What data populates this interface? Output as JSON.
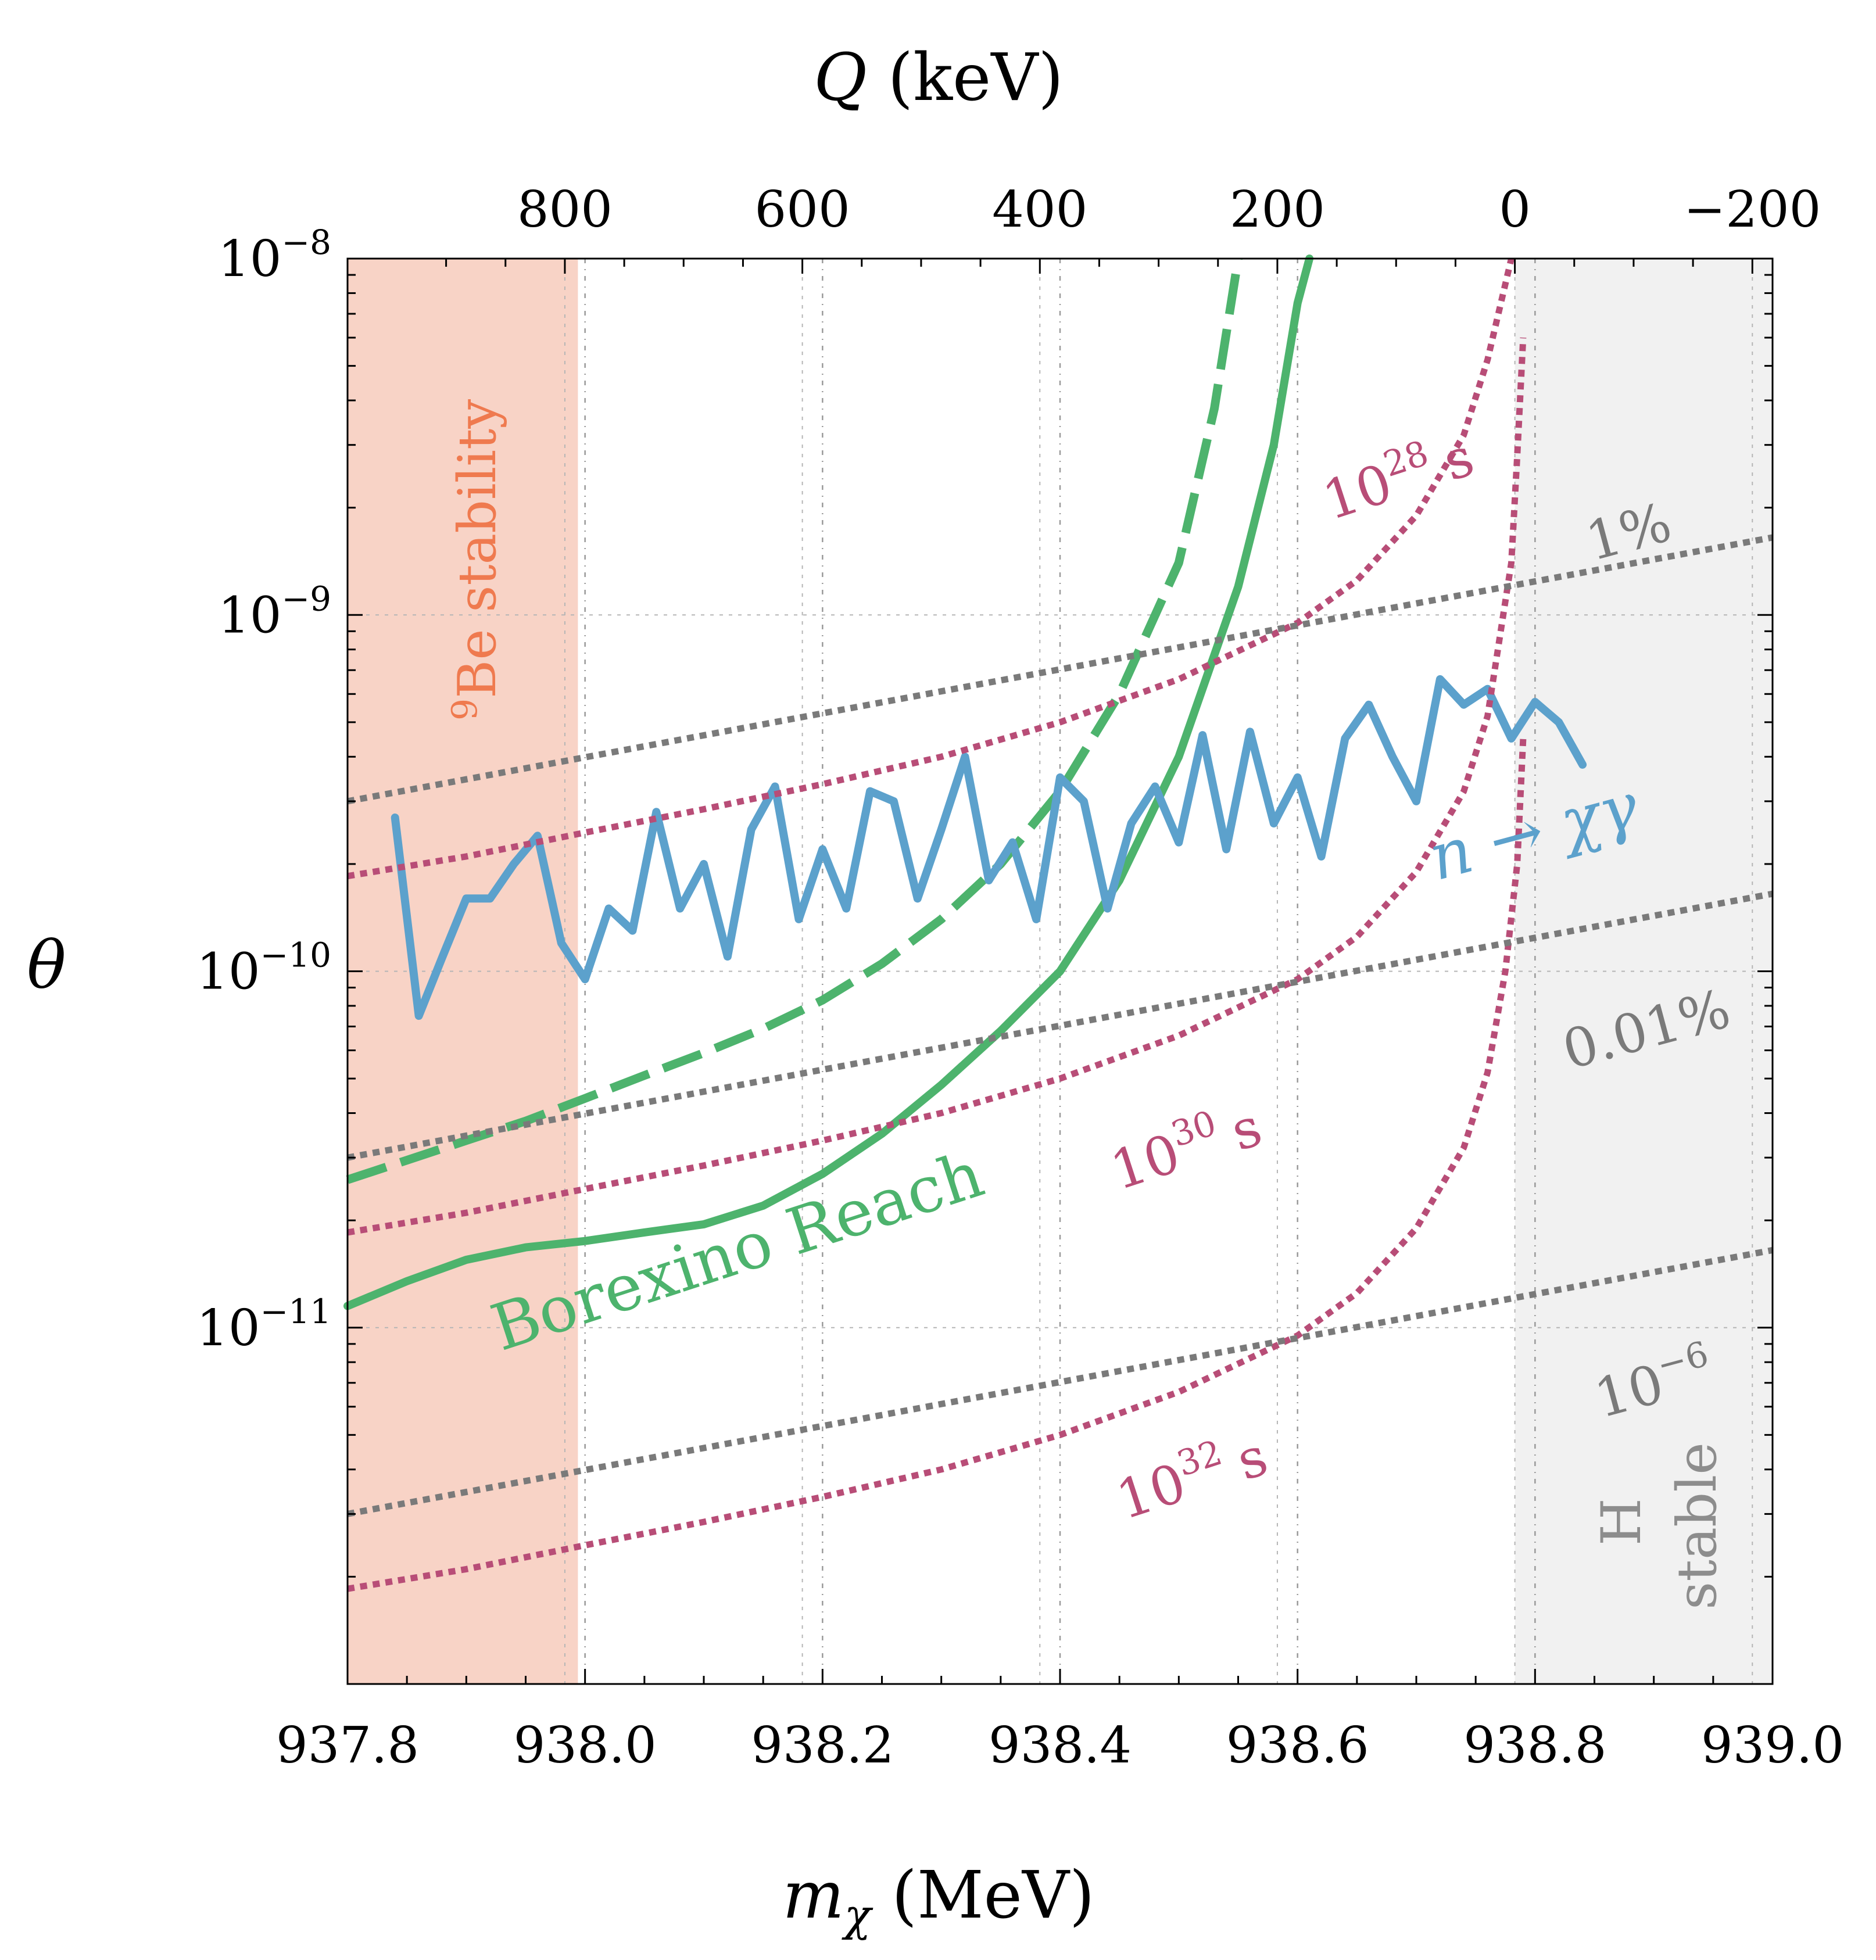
{
  "chart_data": {
    "type": "line",
    "xlabel": {
      "sym": "m",
      "sub": "χ",
      "unit": " (MeV)"
    },
    "x2label": {
      "sym": "Q",
      "unit": " (keV)"
    },
    "ylabel": "θ",
    "xlim": [
      937.8,
      939.0
    ],
    "ylim": [
      1e-12,
      1e-08
    ],
    "yscale": "log",
    "grid": true,
    "x_ticks": [
      "937.8",
      "938.0",
      "938.2",
      "938.4",
      "938.6",
      "938.8",
      "939.0"
    ],
    "x_tick_values": [
      937.8,
      938.0,
      938.2,
      938.4,
      938.6,
      938.8,
      939.0
    ],
    "x2_ticks": [
      "800",
      "600",
      "400",
      "200",
      "0",
      "−200"
    ],
    "x2_tick_values": [
      800,
      600,
      400,
      200,
      0,
      -200
    ],
    "y_ticks": [
      {
        "base": "10",
        "exp": "−8",
        "value": 1e-08
      },
      {
        "base": "10",
        "exp": "−9",
        "value": 1e-09
      },
      {
        "base": "10",
        "exp": "−10",
        "value": 1e-10
      },
      {
        "base": "10",
        "exp": "−11",
        "value": 1e-11
      }
    ],
    "regions": [
      {
        "name": "9Be stability",
        "x": [
          937.8,
          937.994
        ],
        "color": "#f8d3c6"
      },
      {
        "name": "H stable",
        "x": [
          938.783,
          939.0
        ],
        "color": "#f1f1f1"
      }
    ],
    "series": [
      {
        "style": "solid",
        "color": "#4db36d",
        "x": [
          937.8,
          937.85,
          937.9,
          937.95,
          938.0,
          938.05,
          938.1,
          938.15,
          938.2,
          938.25,
          938.3,
          938.35,
          938.4,
          938.45,
          938.5,
          938.55,
          938.58,
          938.6,
          938.61
        ],
        "y": [
          1.15e-11,
          1.35e-11,
          1.55e-11,
          1.68e-11,
          1.75e-11,
          1.85e-11,
          1.95e-11,
          2.2e-11,
          2.7e-11,
          3.5e-11,
          4.8e-11,
          6.8e-11,
          1e-10,
          1.8e-10,
          4e-10,
          1.2e-09,
          3e-09,
          7.5e-09,
          1e-08
        ]
      },
      {
        "style": "dashed",
        "color": "#4db36d",
        "x": [
          937.8,
          937.85,
          937.9,
          937.95,
          938.0,
          938.05,
          938.1,
          938.15,
          938.2,
          938.25,
          938.3,
          938.35,
          938.4,
          938.45,
          938.5,
          938.53,
          938.55
        ],
        "y": [
          2.6e-11,
          2.95e-11,
          3.35e-11,
          3.8e-11,
          4.4e-11,
          5.1e-11,
          5.9e-11,
          6.9e-11,
          8.3e-11,
          1.05e-10,
          1.4e-10,
          2e-10,
          3.2e-10,
          6e-10,
          1.4e-09,
          3.8e-09,
          1e-08
        ]
      },
      {
        "style": "solid",
        "color": "#5ca1cc",
        "x": [
          937.84,
          937.86,
          937.88,
          937.9,
          937.92,
          937.94,
          937.96,
          937.98,
          938.0,
          938.02,
          938.04,
          938.06,
          938.08,
          938.1,
          938.12,
          938.14,
          938.16,
          938.18,
          938.2,
          938.22,
          938.24,
          938.26,
          938.28,
          938.3,
          938.32,
          938.34,
          938.36,
          938.38,
          938.4,
          938.42,
          938.44,
          938.46,
          938.48,
          938.5,
          938.52,
          938.54,
          938.56,
          938.58,
          938.6,
          938.62,
          938.64,
          938.66,
          938.68,
          938.7,
          938.72,
          938.74,
          938.76,
          938.78,
          938.8,
          938.82,
          938.84
        ],
        "y": [
          2.7e-10,
          7.5e-11,
          1.1e-10,
          1.6e-10,
          1.6e-10,
          2e-10,
          2.4e-10,
          1.2e-10,
          9.5e-11,
          1.5e-10,
          1.3e-10,
          2.8e-10,
          1.5e-10,
          2e-10,
          1.1e-10,
          2.5e-10,
          3.3e-10,
          1.4e-10,
          2.2e-10,
          1.5e-10,
          3.2e-10,
          3e-10,
          1.6e-10,
          2.5e-10,
          4e-10,
          1.8e-10,
          2.3e-10,
          1.4e-10,
          3.5e-10,
          3e-10,
          1.5e-10,
          2.6e-10,
          3.3e-10,
          2.3e-10,
          4.6e-10,
          2.2e-10,
          4.7e-10,
          2.6e-10,
          3.5e-10,
          2.1e-10,
          4.5e-10,
          5.6e-10,
          4e-10,
          3e-10,
          6.6e-10,
          5.6e-10,
          6.2e-10,
          4.5e-10,
          5.7e-10,
          5e-10,
          3.8e-10
        ]
      },
      {
        "style": "dotted",
        "color": "#b84d77",
        "x": [
          937.8,
          937.9,
          938.0,
          938.1,
          938.2,
          938.3,
          938.4,
          938.5,
          938.6,
          938.65,
          938.7,
          938.74,
          938.76,
          938.78
        ],
        "y": [
          1.85e-10,
          2.1e-10,
          2.45e-10,
          2.85e-10,
          3.35e-10,
          4e-10,
          5e-10,
          6.6e-10,
          9.5e-10,
          1.25e-09,
          1.9e-09,
          3.2e-09,
          5.2e-09,
          1e-08
        ]
      },
      {
        "style": "dotted",
        "color": "#b84d77",
        "x": [
          937.8,
          937.9,
          938.0,
          938.1,
          938.2,
          938.3,
          938.4,
          938.5,
          938.6,
          938.65,
          938.7,
          938.74,
          938.76,
          938.78,
          938.785,
          938.79
        ],
        "y": [
          1.85e-11,
          2.1e-11,
          2.45e-11,
          2.85e-11,
          3.35e-11,
          4e-11,
          5e-11,
          6.6e-11,
          9.5e-11,
          1.25e-10,
          1.9e-10,
          3.2e-10,
          5.2e-10,
          1.4e-09,
          2.8e-09,
          6e-09
        ]
      },
      {
        "style": "dotted",
        "color": "#b84d77",
        "x": [
          937.8,
          937.9,
          938.0,
          938.1,
          938.2,
          938.3,
          938.4,
          938.5,
          938.6,
          938.65,
          938.7,
          938.74,
          938.76,
          938.775,
          938.785,
          938.79
        ],
        "y": [
          1.85e-12,
          2.1e-12,
          2.45e-12,
          2.85e-12,
          3.35e-12,
          4e-12,
          5e-12,
          6.6e-12,
          9.5e-12,
          1.25e-11,
          1.9e-11,
          3.2e-11,
          5.2e-11,
          1e-10,
          2e-10,
          4.5e-10
        ]
      },
      {
        "style": "dotted",
        "color": "#7a7a7a",
        "x": [
          937.8,
          939.0
        ],
        "y": [
          3e-10,
          1.65e-09
        ]
      },
      {
        "style": "dotted",
        "color": "#7a7a7a",
        "x": [
          937.8,
          939.0
        ],
        "y": [
          3e-11,
          1.65e-10
        ]
      },
      {
        "style": "dotted",
        "color": "#7a7a7a",
        "x": [
          937.8,
          939.0
        ],
        "y": [
          3e-12,
          1.65e-11
        ]
      }
    ],
    "annotations": {
      "be_base": "Be stability",
      "be_sup": "9",
      "borexino": "Borexino Reach",
      "decay": "n → χγ",
      "t28": "10",
      "t28_sup": "28",
      "t28_unit": "s",
      "t30": "10",
      "t30_sup": "30",
      "t30_unit": "s",
      "t32": "10",
      "t32_sup": "32",
      "t32_unit": "s",
      "p1": "1%",
      "p001": "0.01%",
      "p6": "10",
      "p6_sup": "−6",
      "h": "H",
      "stable": "stable"
    },
    "colors": {
      "green": "#4db36d",
      "blue": "#5ca1cc",
      "magenta": "#b84d77",
      "gray": "#7a7a7a",
      "be_text": "#ef7a4f",
      "h_text": "#8d8d8d"
    }
  }
}
